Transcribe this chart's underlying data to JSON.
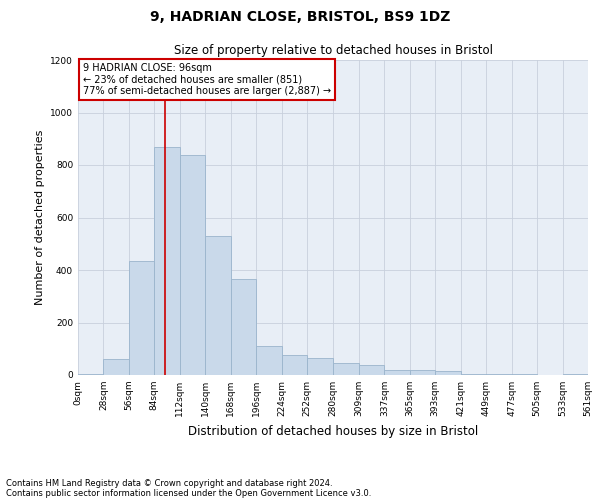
{
  "title1": "9, HADRIAN CLOSE, BRISTOL, BS9 1DZ",
  "title2": "Size of property relative to detached houses in Bristol",
  "xlabel": "Distribution of detached houses by size in Bristol",
  "ylabel": "Number of detached properties",
  "bar_color": "#c9d9ea",
  "bar_edge_color": "#9ab4cc",
  "grid_color": "#c8d0dc",
  "background_color": "#e8eef6",
  "annotation_box_color": "#ffffff",
  "annotation_box_edge": "#cc0000",
  "vline_color": "#cc0000",
  "vline_x": 96,
  "bins": [
    0,
    28,
    56,
    84,
    112,
    140,
    168,
    196,
    224,
    252,
    280,
    309,
    337,
    365,
    393,
    421,
    449,
    477,
    505,
    533,
    561
  ],
  "bin_labels": [
    "0sqm",
    "28sqm",
    "56sqm",
    "84sqm",
    "112sqm",
    "140sqm",
    "168sqm",
    "196sqm",
    "224sqm",
    "252sqm",
    "280sqm",
    "309sqm",
    "337sqm",
    "365sqm",
    "393sqm",
    "421sqm",
    "449sqm",
    "477sqm",
    "505sqm",
    "533sqm",
    "561sqm"
  ],
  "values": [
    5,
    60,
    435,
    870,
    840,
    530,
    365,
    110,
    75,
    65,
    45,
    40,
    20,
    20,
    15,
    5,
    5,
    5,
    0,
    3
  ],
  "annotation_title": "9 HADRIAN CLOSE: 96sqm",
  "annotation_line1": "← 23% of detached houses are smaller (851)",
  "annotation_line2": "77% of semi-detached houses are larger (2,887) →",
  "ylim": [
    0,
    1200
  ],
  "yticks": [
    0,
    200,
    400,
    600,
    800,
    1000,
    1200
  ],
  "footer1": "Contains HM Land Registry data © Crown copyright and database right 2024.",
  "footer2": "Contains public sector information licensed under the Open Government Licence v3.0."
}
